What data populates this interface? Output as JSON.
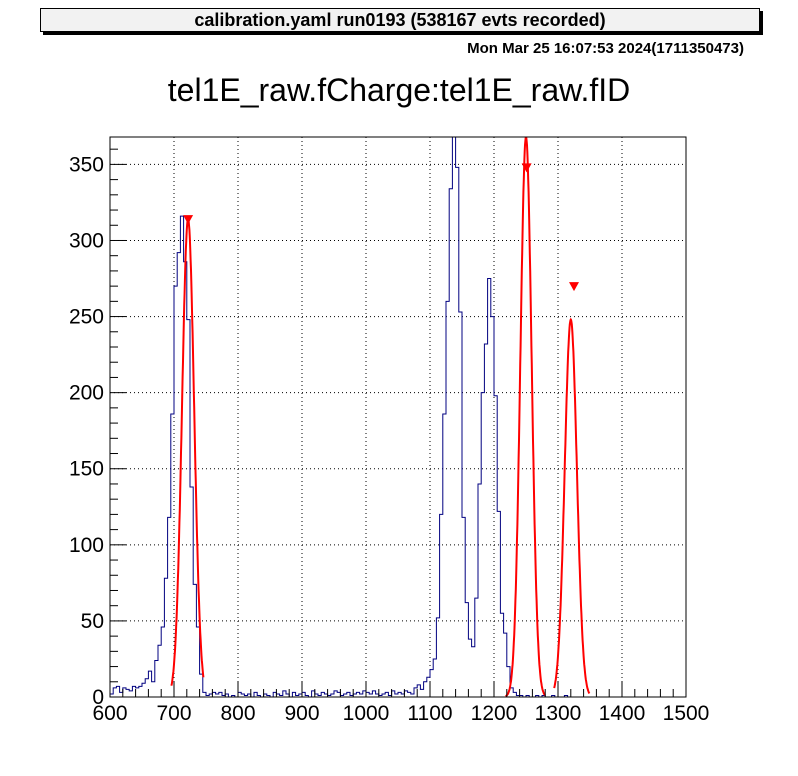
{
  "header": {
    "run_info": "calibration.yaml  run0193 (538167 evts recorded)",
    "timestamp": "Mon Mar 25 16:07:53 2024(1711350473)"
  },
  "chart_data": {
    "type": "histogram",
    "title": "tel1E_raw.fCharge:tel1E_raw.fID",
    "xlim": [
      600,
      1500
    ],
    "ylim": [
      0,
      368
    ],
    "x_ticks": [
      600,
      700,
      800,
      900,
      1000,
      1100,
      1200,
      1300,
      1400,
      1500
    ],
    "y_ticks": [
      0,
      50,
      100,
      150,
      200,
      250,
      300,
      350
    ],
    "grid": true,
    "colors": {
      "histogram": "#000080",
      "fit": "#ff0000",
      "marker": "#ff0000"
    },
    "bin_width": 5,
    "bin_start": 600,
    "histogram": [
      2,
      6,
      7,
      3,
      6,
      5,
      4,
      7,
      6,
      7,
      9,
      12,
      17,
      10,
      24,
      34,
      46,
      78,
      118,
      186,
      270,
      292,
      316,
      286,
      248,
      138,
      74,
      46,
      15,
      3,
      1,
      2,
      3,
      2,
      3,
      1,
      2,
      0,
      1,
      0,
      3,
      2,
      1,
      2,
      0,
      3,
      1,
      0,
      2,
      1,
      0,
      3,
      2,
      1,
      4,
      2,
      0,
      3,
      1,
      2,
      3,
      1,
      0,
      4,
      2,
      1,
      3,
      2,
      1,
      2,
      4,
      3,
      1,
      2,
      3,
      1,
      2,
      3,
      2,
      4,
      3,
      2,
      4,
      2,
      1,
      2,
      3,
      1,
      4,
      2,
      3,
      2,
      4,
      3,
      2,
      6,
      8,
      5,
      10,
      13,
      18,
      25,
      52,
      120,
      186,
      260,
      334,
      368,
      348,
      253,
      118,
      62,
      38,
      33,
      65,
      140,
      200,
      232,
      275,
      250,
      198,
      122,
      55,
      42,
      20,
      6,
      3,
      1,
      1,
      0,
      1,
      0,
      0,
      1,
      0,
      1,
      0,
      0,
      1,
      0,
      0,
      0,
      1,
      0,
      0,
      0
    ],
    "fits": [
      {
        "mean": 722,
        "sigma": 9.5,
        "amplitude": 314,
        "range": [
          696,
          746
        ]
      },
      {
        "mean": 1250,
        "sigma": 8.8,
        "amplitude": 368,
        "range": [
          1218,
          1280
        ]
      },
      {
        "mean": 1320,
        "sigma": 9.5,
        "amplitude": 248,
        "range": [
          1294,
          1349
        ]
      }
    ],
    "peak_markers": [
      {
        "x": 722,
        "y": 314
      },
      {
        "x": 1251,
        "y": 348
      },
      {
        "x": 1325,
        "y": 270
      }
    ]
  }
}
